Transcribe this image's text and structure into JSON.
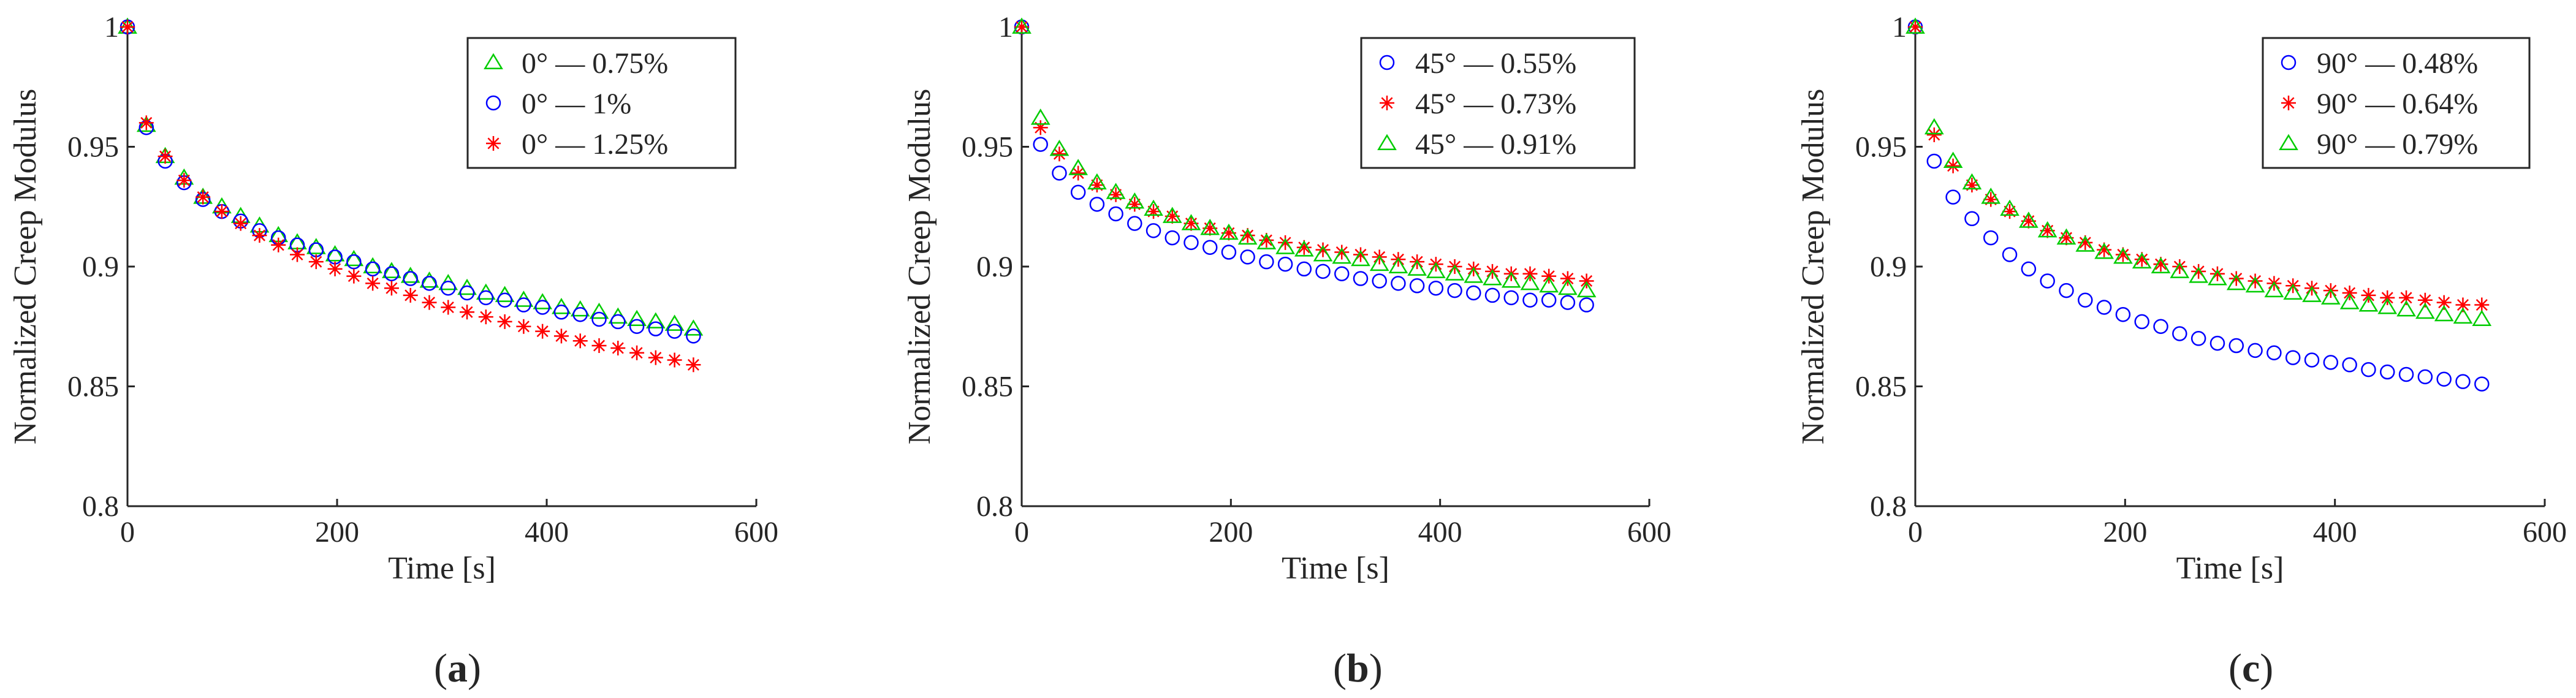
{
  "colors": {
    "blue": "#0000ff",
    "red": "#ff0000",
    "green": "#00cc00",
    "axis": "#262626"
  },
  "chart_data": [
    {
      "type": "scatter",
      "panel_label": "a",
      "title": "",
      "xlabel": "Time [s]",
      "ylabel": "Normalized Creep Modulus",
      "xlim": [
        0,
        600
      ],
      "ylim": [
        0.8,
        1
      ],
      "xticks": [
        0,
        200,
        400,
        600
      ],
      "yticks": [
        0.8,
        0.85,
        0.9,
        0.95,
        1
      ],
      "xtick_labels": [
        "0",
        "200",
        "400",
        "600"
      ],
      "ytick_labels": [
        "0.8",
        "0.85",
        "0.9",
        "0.95",
        "1"
      ],
      "grid": false,
      "legend_position": "top-right",
      "x": [
        0,
        18,
        36,
        54,
        72,
        90,
        108,
        126,
        144,
        162,
        180,
        198,
        216,
        234,
        252,
        270,
        288,
        306,
        324,
        342,
        360,
        378,
        396,
        414,
        432,
        450,
        468,
        486,
        504,
        522,
        540
      ],
      "series": [
        {
          "name": "0° — 0.75%",
          "marker": "triangle",
          "color": "#00cc00",
          "values": [
            1.0,
            0.959,
            0.946,
            0.937,
            0.929,
            0.925,
            0.921,
            0.917,
            0.913,
            0.91,
            0.908,
            0.905,
            0.903,
            0.9,
            0.898,
            0.896,
            0.894,
            0.893,
            0.891,
            0.889,
            0.888,
            0.886,
            0.885,
            0.883,
            0.882,
            0.881,
            0.879,
            0.878,
            0.877,
            0.876,
            0.874
          ]
        },
        {
          "name": "0° — 1%",
          "marker": "circle",
          "color": "#0000ff",
          "values": [
            1.0,
            0.958,
            0.944,
            0.935,
            0.928,
            0.923,
            0.919,
            0.915,
            0.912,
            0.909,
            0.907,
            0.904,
            0.902,
            0.899,
            0.897,
            0.895,
            0.893,
            0.891,
            0.889,
            0.887,
            0.886,
            0.884,
            0.883,
            0.881,
            0.88,
            0.878,
            0.877,
            0.875,
            0.874,
            0.873,
            0.871
          ]
        },
        {
          "name": "0° — 1.25%",
          "marker": "star",
          "color": "#ff0000",
          "values": [
            1.0,
            0.96,
            0.946,
            0.936,
            0.929,
            0.923,
            0.918,
            0.913,
            0.909,
            0.905,
            0.902,
            0.899,
            0.896,
            0.893,
            0.891,
            0.888,
            0.885,
            0.883,
            0.881,
            0.879,
            0.877,
            0.875,
            0.873,
            0.871,
            0.869,
            0.867,
            0.866,
            0.864,
            0.862,
            0.861,
            0.859
          ]
        }
      ]
    },
    {
      "type": "scatter",
      "panel_label": "b",
      "title": "",
      "xlabel": "Time [s]",
      "ylabel": "Normalized Creep Modulus",
      "xlim": [
        0,
        600
      ],
      "ylim": [
        0.8,
        1
      ],
      "xticks": [
        0,
        200,
        400,
        600
      ],
      "yticks": [
        0.8,
        0.85,
        0.9,
        0.95,
        1
      ],
      "xtick_labels": [
        "0",
        "200",
        "400",
        "600"
      ],
      "ytick_labels": [
        "0.8",
        "0.85",
        "0.9",
        "0.95",
        "1"
      ],
      "grid": false,
      "legend_position": "top-right",
      "x": [
        0,
        18,
        36,
        54,
        72,
        90,
        108,
        126,
        144,
        162,
        180,
        198,
        216,
        234,
        252,
        270,
        288,
        306,
        324,
        342,
        360,
        378,
        396,
        414,
        432,
        450,
        468,
        486,
        504,
        522,
        540
      ],
      "series": [
        {
          "name": "45° — 0.55%",
          "marker": "circle",
          "color": "#0000ff",
          "values": [
            1.0,
            0.951,
            0.939,
            0.931,
            0.926,
            0.922,
            0.918,
            0.915,
            0.912,
            0.91,
            0.908,
            0.906,
            0.904,
            0.902,
            0.901,
            0.899,
            0.898,
            0.897,
            0.895,
            0.894,
            0.893,
            0.892,
            0.891,
            0.89,
            0.889,
            0.888,
            0.887,
            0.886,
            0.886,
            0.885,
            0.884
          ]
        },
        {
          "name": "45° — 0.73%",
          "marker": "star",
          "color": "#ff0000",
          "values": [
            1.0,
            0.958,
            0.947,
            0.939,
            0.934,
            0.93,
            0.926,
            0.923,
            0.921,
            0.918,
            0.916,
            0.914,
            0.913,
            0.911,
            0.91,
            0.908,
            0.907,
            0.906,
            0.905,
            0.904,
            0.903,
            0.902,
            0.901,
            0.9,
            0.899,
            0.898,
            0.897,
            0.897,
            0.896,
            0.895,
            0.894
          ]
        },
        {
          "name": "45° — 0.91%",
          "marker": "triangle",
          "color": "#00cc00",
          "values": [
            1.0,
            0.962,
            0.949,
            0.941,
            0.935,
            0.931,
            0.927,
            0.924,
            0.921,
            0.918,
            0.916,
            0.914,
            0.912,
            0.91,
            0.908,
            0.907,
            0.905,
            0.904,
            0.903,
            0.901,
            0.9,
            0.899,
            0.898,
            0.897,
            0.896,
            0.895,
            0.894,
            0.893,
            0.892,
            0.891,
            0.89
          ]
        }
      ]
    },
    {
      "type": "scatter",
      "panel_label": "c",
      "title": "",
      "xlabel": "Time [s]",
      "ylabel": "Normalized Creep Modulus",
      "xlim": [
        0,
        600
      ],
      "ylim": [
        0.8,
        1
      ],
      "xticks": [
        0,
        200,
        400,
        600
      ],
      "yticks": [
        0.8,
        0.85,
        0.9,
        0.95,
        1
      ],
      "xtick_labels": [
        "0",
        "200",
        "400",
        "600"
      ],
      "ytick_labels": [
        "0.8",
        "0.85",
        "0.9",
        "0.95",
        "1"
      ],
      "grid": false,
      "legend_position": "top-right",
      "x": [
        0,
        18,
        36,
        54,
        72,
        90,
        108,
        126,
        144,
        162,
        180,
        198,
        216,
        234,
        252,
        270,
        288,
        306,
        324,
        342,
        360,
        378,
        396,
        414,
        432,
        450,
        468,
        486,
        504,
        522,
        540
      ],
      "series": [
        {
          "name": "90° — 0.48%",
          "marker": "circle",
          "color": "#0000ff",
          "values": [
            1.0,
            0.944,
            0.929,
            0.92,
            0.912,
            0.905,
            0.899,
            0.894,
            0.89,
            0.886,
            0.883,
            0.88,
            0.877,
            0.875,
            0.872,
            0.87,
            0.868,
            0.867,
            0.865,
            0.864,
            0.862,
            0.861,
            0.86,
            0.859,
            0.857,
            0.856,
            0.855,
            0.854,
            0.853,
            0.852,
            0.851
          ]
        },
        {
          "name": "90° — 0.64%",
          "marker": "star",
          "color": "#ff0000",
          "values": [
            1.0,
            0.955,
            0.942,
            0.934,
            0.928,
            0.923,
            0.919,
            0.915,
            0.912,
            0.91,
            0.907,
            0.905,
            0.903,
            0.901,
            0.9,
            0.898,
            0.897,
            0.895,
            0.894,
            0.893,
            0.892,
            0.891,
            0.89,
            0.889,
            0.888,
            0.887,
            0.887,
            0.886,
            0.885,
            0.884,
            0.884
          ]
        },
        {
          "name": "90° — 0.79%",
          "marker": "triangle",
          "color": "#00cc00",
          "values": [
            1.0,
            0.958,
            0.944,
            0.935,
            0.929,
            0.924,
            0.919,
            0.915,
            0.912,
            0.909,
            0.906,
            0.904,
            0.902,
            0.9,
            0.898,
            0.896,
            0.895,
            0.893,
            0.892,
            0.89,
            0.889,
            0.888,
            0.887,
            0.885,
            0.884,
            0.883,
            0.882,
            0.881,
            0.88,
            0.879,
            0.878
          ]
        }
      ]
    }
  ]
}
